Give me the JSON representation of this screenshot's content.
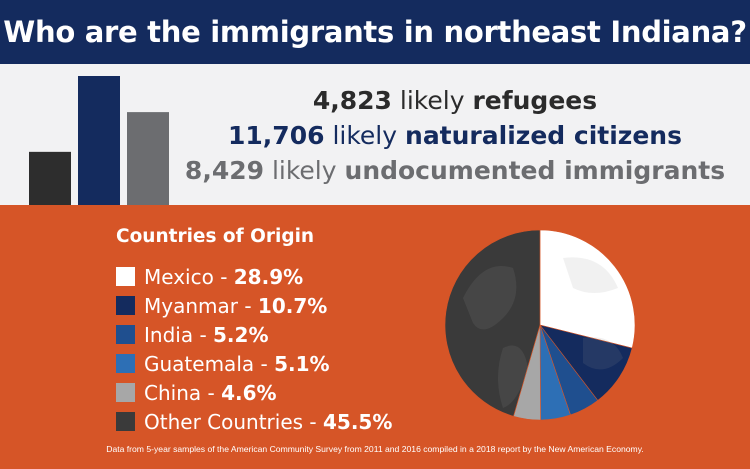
{
  "title": "Who are the immigrants in northeast Indiana?",
  "stats": [
    {
      "number": "4,823",
      "word": "likely",
      "label": "refugees",
      "color": "#2b2b2b"
    },
    {
      "number": "11,706",
      "word": "likely",
      "label": "naturalized citizens",
      "color": "#142b5e"
    },
    {
      "number": "8,429",
      "word": "likely",
      "label": "undocumented immigrants",
      "color": "#6c6d70"
    }
  ],
  "chart_data": [
    {
      "type": "bar",
      "categories": [
        "refugees",
        "naturalized citizens",
        "undocumented immigrants"
      ],
      "values": [
        4823,
        11706,
        8429
      ],
      "colors": [
        "#2d2d2d",
        "#142b5e",
        "#6c6d70"
      ],
      "ylim": [
        0,
        11706
      ]
    },
    {
      "type": "pie",
      "title": "Countries of Origin",
      "categories": [
        "Mexico",
        "Myanmar",
        "India",
        "Guatemala",
        "China",
        "Other Countries"
      ],
      "values": [
        28.9,
        10.7,
        5.2,
        5.1,
        4.6,
        45.5
      ],
      "labels": [
        "28.9%",
        "10.7%",
        "5.2%",
        "5.1%",
        "4.6%",
        "45.5%"
      ],
      "colors": [
        "#ffffff",
        "#142b5e",
        "#1f4f8f",
        "#2d6fb5",
        "#a7a7a7",
        "#3a3a3a"
      ],
      "legend": "left"
    }
  ],
  "legend_separator": " - ",
  "footnote": "Data from 5-year samples of the American Community Survey from 2011 and 2016 compiled in a 2018 report by the New American Economy."
}
